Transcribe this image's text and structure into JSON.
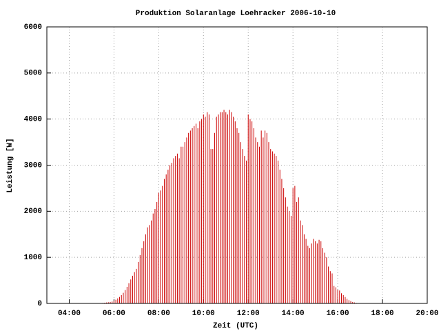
{
  "chart_data": {
    "type": "bar",
    "title": "Produktion Solaranlage Loehracker 2006-10-10",
    "x_label": "Zeit (UTC)",
    "y_label": "Leistung [W]",
    "color": "#cc0000",
    "grid": true,
    "xlim": [
      180,
      1200
    ],
    "ylim": [
      0,
      6000
    ],
    "xticks": [
      {
        "value": 240,
        "label": "04:00"
      },
      {
        "value": 360,
        "label": "06:00"
      },
      {
        "value": 480,
        "label": "08:00"
      },
      {
        "value": 600,
        "label": "10:00"
      },
      {
        "value": 720,
        "label": "12:00"
      },
      {
        "value": 840,
        "label": "14:00"
      },
      {
        "value": 960,
        "label": "16:00"
      },
      {
        "value": 1080,
        "label": "18:00"
      },
      {
        "value": 1200,
        "label": "20:00"
      }
    ],
    "yticks": [
      0,
      1000,
      2000,
      3000,
      4000,
      5000,
      6000
    ],
    "x": [
      330,
      335,
      340,
      345,
      350,
      355,
      360,
      365,
      370,
      375,
      380,
      385,
      390,
      395,
      400,
      405,
      410,
      415,
      420,
      425,
      430,
      435,
      440,
      445,
      450,
      455,
      460,
      465,
      470,
      475,
      480,
      485,
      490,
      495,
      500,
      505,
      510,
      515,
      520,
      525,
      530,
      535,
      540,
      545,
      550,
      555,
      560,
      565,
      570,
      575,
      580,
      585,
      590,
      595,
      600,
      605,
      610,
      615,
      620,
      625,
      630,
      635,
      640,
      645,
      650,
      655,
      660,
      665,
      670,
      675,
      680,
      685,
      690,
      695,
      700,
      705,
      710,
      715,
      720,
      725,
      730,
      735,
      740,
      745,
      750,
      755,
      760,
      765,
      770,
      775,
      780,
      785,
      790,
      795,
      800,
      805,
      810,
      815,
      820,
      825,
      830,
      835,
      840,
      845,
      850,
      855,
      860,
      865,
      870,
      875,
      880,
      885,
      890,
      895,
      900,
      905,
      910,
      915,
      920,
      925,
      930,
      935,
      940,
      945,
      950,
      955,
      960,
      965,
      970,
      975,
      980,
      985,
      990,
      995,
      1000,
      1005,
      1010
    ],
    "values": [
      10,
      15,
      20,
      25,
      30,
      40,
      60,
      80,
      110,
      140,
      180,
      230,
      290,
      360,
      440,
      520,
      600,
      680,
      750,
      900,
      1050,
      1200,
      1350,
      1500,
      1650,
      1700,
      1800,
      1950,
      2050,
      2200,
      2400,
      2450,
      2550,
      2700,
      2800,
      2900,
      3000,
      3050,
      3150,
      3200,
      3250,
      3150,
      3400,
      3400,
      3500,
      3600,
      3700,
      3750,
      3800,
      3850,
      3900,
      3800,
      3950,
      4000,
      4100,
      4050,
      4150,
      4100,
      3350,
      3350,
      3700,
      4050,
      4100,
      4150,
      4150,
      4200,
      4150,
      4100,
      4200,
      4150,
      4050,
      3950,
      3800,
      3700,
      3500,
      3350,
      3200,
      3100,
      4100,
      4000,
      3950,
      3800,
      3600,
      3500,
      3400,
      3750,
      3600,
      3750,
      3700,
      3500,
      3350,
      3300,
      3250,
      3200,
      3100,
      2900,
      2700,
      2500,
      2300,
      2100,
      2000,
      1900,
      2500,
      2550,
      2200,
      2300,
      1800,
      1700,
      1500,
      1400,
      1250,
      1200,
      1300,
      1400,
      1350,
      1300,
      1380,
      1350,
      1200,
      1100,
      1000,
      800,
      700,
      650,
      380,
      350,
      300,
      280,
      220,
      180,
      140,
      100,
      70,
      50,
      30,
      20,
      10
    ]
  }
}
